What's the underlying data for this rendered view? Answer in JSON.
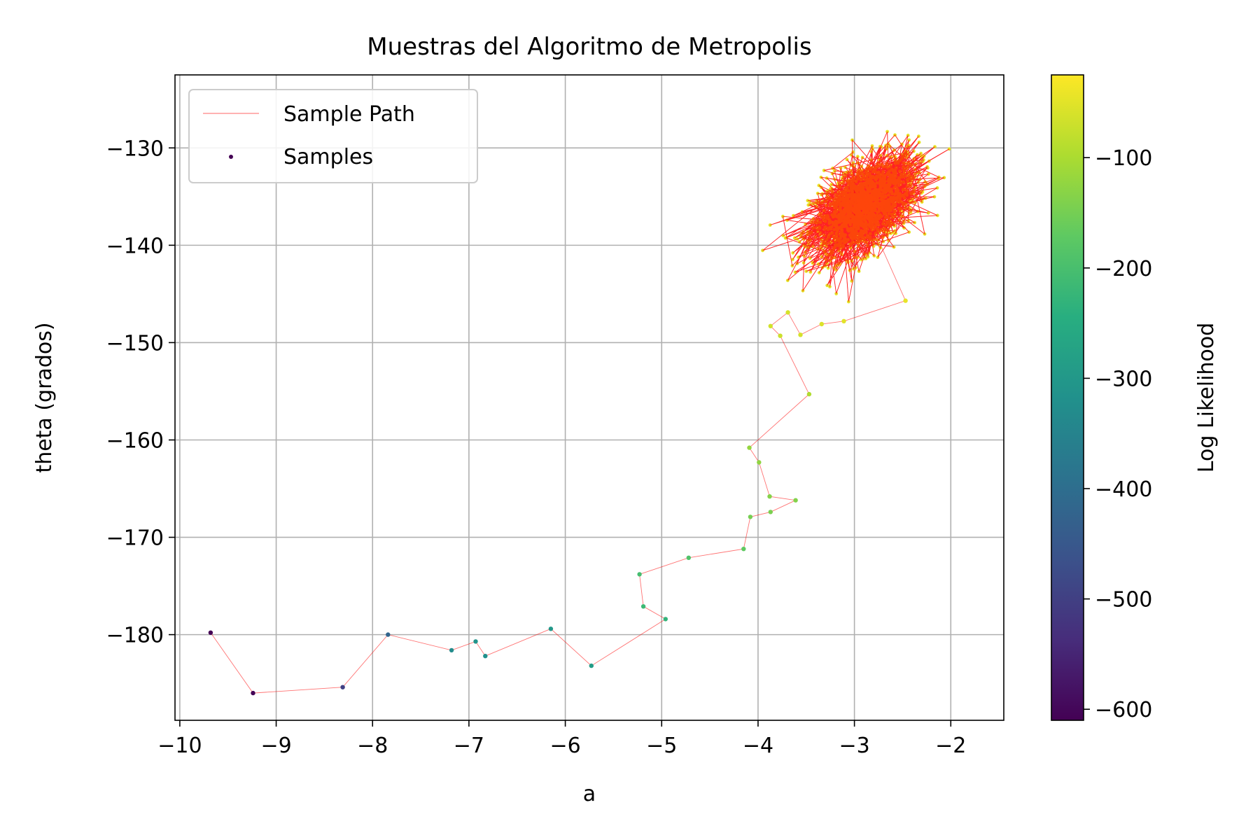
{
  "chart_data": {
    "type": "scatter",
    "title": "Muestras del Algoritmo de Metropolis",
    "xlabel": "a",
    "ylabel": "theta (grados)",
    "xlim": [
      -10.05,
      -1.45
    ],
    "ylim": [
      -188.8,
      -122.5
    ],
    "grid": true,
    "legend_position": "top-left",
    "legend": [
      "Sample Path",
      "Samples"
    ],
    "path_color": "#ff0000",
    "x_ticks": [
      -10,
      -9,
      -8,
      -7,
      -6,
      -5,
      -4,
      -3,
      -2
    ],
    "y_ticks": [
      -130,
      -140,
      -150,
      -160,
      -170,
      -180
    ],
    "colorbar": {
      "label": "Log Likelihood",
      "range": [
        -610,
        -25
      ],
      "ticks": [
        -100,
        -200,
        -300,
        -400,
        -500,
        -600
      ],
      "colormap": "viridis"
    },
    "series": [
      {
        "name": "Samples",
        "points": [
          {
            "x": -9.68,
            "y": -179.8,
            "ll": -610
          },
          {
            "x": -9.24,
            "y": -186.0,
            "ll": -605
          },
          {
            "x": -8.31,
            "y": -185.4,
            "ll": -500
          },
          {
            "x": -7.84,
            "y": -180.0,
            "ll": -420
          },
          {
            "x": -7.18,
            "y": -181.6,
            "ll": -330
          },
          {
            "x": -6.93,
            "y": -180.7,
            "ll": -310
          },
          {
            "x": -6.83,
            "y": -182.2,
            "ll": -320
          },
          {
            "x": -6.15,
            "y": -179.4,
            "ll": -300
          },
          {
            "x": -5.73,
            "y": -183.2,
            "ll": -290
          },
          {
            "x": -4.96,
            "y": -178.4,
            "ll": -230
          },
          {
            "x": -5.19,
            "y": -177.1,
            "ll": -215
          },
          {
            "x": -5.23,
            "y": -173.8,
            "ll": -205
          },
          {
            "x": -4.72,
            "y": -172.1,
            "ll": -190
          },
          {
            "x": -4.15,
            "y": -171.2,
            "ll": -170
          },
          {
            "x": -4.08,
            "y": -167.9,
            "ll": -150
          },
          {
            "x": -3.87,
            "y": -167.4,
            "ll": -145
          },
          {
            "x": -3.61,
            "y": -166.2,
            "ll": -138
          },
          {
            "x": -3.88,
            "y": -165.8,
            "ll": -135
          },
          {
            "x": -3.99,
            "y": -162.3,
            "ll": -125
          },
          {
            "x": -4.09,
            "y": -160.8,
            "ll": -120
          },
          {
            "x": -3.47,
            "y": -155.3,
            "ll": -95
          },
          {
            "x": -3.77,
            "y": -149.3,
            "ll": -70
          },
          {
            "x": -3.87,
            "y": -148.3,
            "ll": -65
          },
          {
            "x": -3.69,
            "y": -146.9,
            "ll": -60
          },
          {
            "x": -3.56,
            "y": -149.2,
            "ll": -62
          },
          {
            "x": -3.34,
            "y": -148.1,
            "ll": -55
          },
          {
            "x": -3.11,
            "y": -147.8,
            "ll": -50
          },
          {
            "x": -2.47,
            "y": -145.7,
            "ll": -45
          }
        ]
      }
    ],
    "cluster": {
      "center": [
        -2.9,
        -136.0
      ],
      "sd": [
        0.28,
        2.6
      ],
      "correlation": 0.5,
      "count": 1500,
      "ll_range": [
        -48,
        -25
      ]
    }
  }
}
